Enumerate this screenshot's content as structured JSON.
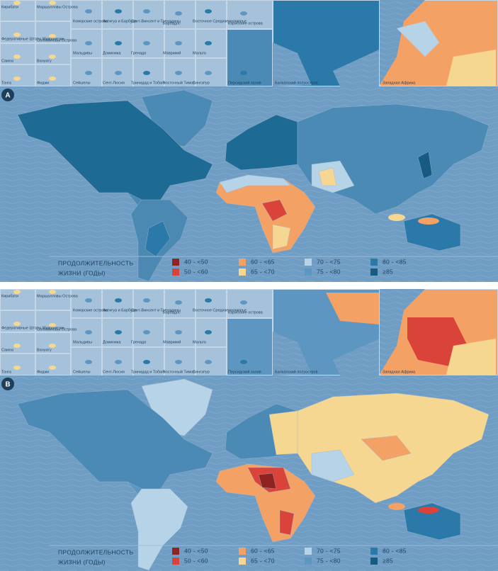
{
  "panels": [
    {
      "letter": "A",
      "insets": [
        "Кирибати",
        "Маршалловы Острова",
        "Федеративные Штаты Микронезии",
        "Соломоновы Острова",
        "Самоа",
        "Вануату",
        "Тонга",
        "Фиджи",
        "Коморские острова",
        "Антигуа и Барбуда",
        "Сент-Винсент и Гренадины",
        "Барбадос",
        "Восточное Средиземноморье",
        "Карибские острова",
        "Мальдивы",
        "Доминика",
        "Гренада",
        "Маврикий",
        "Мальта",
        "Сейшелы",
        "Сент-Люсия",
        "Тринидад и Тобаго",
        "Восточный Тимор",
        "Сингапур",
        "Персидский залив",
        "Балканский полуостров",
        "Западная Африка"
      ],
      "legend": {
        "title": [
          "ПРОДОЛЖИТЕЛЬНОСТЬ",
          "ЖИЗНИ (ГОДЫ)"
        ],
        "items": [
          {
            "label": "40 - <50",
            "color": "#8e2321"
          },
          {
            "label": "50 - <60",
            "color": "#d9433a"
          },
          {
            "label": "60 - <65",
            "color": "#f4a166"
          },
          {
            "label": "65 - <70",
            "color": "#f6d792"
          },
          {
            "label": "70 - <75",
            "color": "#b7d3e8"
          },
          {
            "label": "75 - <80",
            "color": "#5d97c1"
          },
          {
            "label": "80 - <85",
            "color": "#2a79a8"
          },
          {
            "label": "≥85",
            "color": "#175b84"
          }
        ]
      }
    },
    {
      "letter": "B",
      "insets": [
        "Кирибати",
        "Маршалловы Острова",
        "Федеративные Штаты Микронезии",
        "Соломоновы Острова",
        "Самоа",
        "Вануату",
        "Тонга",
        "Фиджи",
        "Коморские острова",
        "Антигуа и Барбуда",
        "Сент-Винсент и Гренадины",
        "Барбадос",
        "Восточное Средиземноморье",
        "Карибские острова",
        "Мальдивы",
        "Доминика",
        "Гренада",
        "Маврикий",
        "Мальта",
        "Сейшелы",
        "Сент-Люсия",
        "Тринидад и Тобаго",
        "Восточный Тимор",
        "Сингапур",
        "Персидский залив",
        "Балканский полуостров",
        "Западная Африка"
      ],
      "legend": {
        "title": [
          "ПРОДОЛЖИТЕЛЬНОСТЬ",
          "ЖИЗНИ (ГОДЫ)"
        ],
        "items": [
          {
            "label": "40 - <50",
            "color": "#8e2321"
          },
          {
            "label": "50 - <60",
            "color": "#d9433a"
          },
          {
            "label": "60 - <65",
            "color": "#f4a166"
          },
          {
            "label": "65 - <70",
            "color": "#f6d792"
          },
          {
            "label": "70 - <75",
            "color": "#b7d3e8"
          },
          {
            "label": "75 - <80",
            "color": "#5d97c1"
          },
          {
            "label": "80 - <85",
            "color": "#2a79a8"
          },
          {
            "label": "≥85",
            "color": "#175b84"
          }
        ]
      }
    }
  ]
}
